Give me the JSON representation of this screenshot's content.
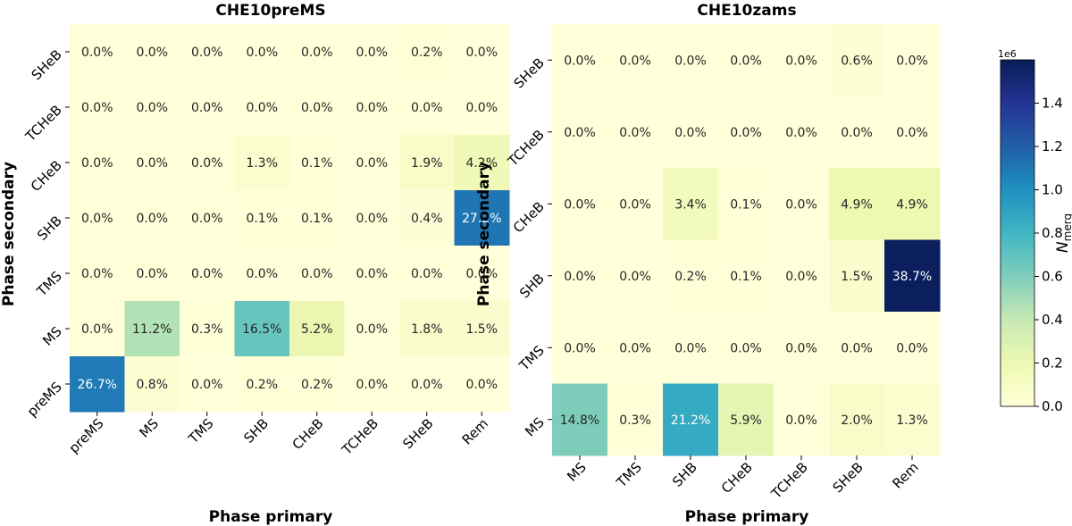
{
  "chart_data": [
    {
      "type": "heatmap",
      "title": "CHE10preMS",
      "xlabel": "Phase primary",
      "ylabel": "Phase secondary",
      "x_categories": [
        "preMS",
        "MS",
        "TMS",
        "SHB",
        "CHeB",
        "TCHeB",
        "SHeB",
        "Rem"
      ],
      "y_categories": [
        "SHeB",
        "TCHeB",
        "CHeB",
        "SHB",
        "TMS",
        "MS",
        "preMS"
      ],
      "values_percent": [
        [
          0.0,
          0.0,
          0.0,
          0.0,
          0.0,
          0.0,
          0.2,
          0.0
        ],
        [
          0.0,
          0.0,
          0.0,
          0.0,
          0.0,
          0.0,
          0.0,
          0.0
        ],
        [
          0.0,
          0.0,
          0.0,
          1.3,
          0.1,
          0.0,
          1.9,
          4.2
        ],
        [
          0.0,
          0.0,
          0.0,
          0.1,
          0.1,
          0.0,
          0.4,
          27.2
        ],
        [
          0.0,
          0.0,
          0.0,
          0.0,
          0.0,
          0.0,
          0.0,
          0.0
        ],
        [
          0.0,
          11.2,
          0.3,
          16.5,
          5.2,
          0.0,
          1.8,
          1.5
        ],
        [
          26.7,
          0.8,
          0.0,
          0.2,
          0.2,
          0.0,
          0.0,
          0.0
        ]
      ],
      "labels": [
        [
          "0.0%",
          "0.0%",
          "0.0%",
          "0.0%",
          "0.0%",
          "0.0%",
          "0.2%",
          "0.0%"
        ],
        [
          "0.0%",
          "0.0%",
          "0.0%",
          "0.0%",
          "0.0%",
          "0.0%",
          "0.0%",
          "0.0%"
        ],
        [
          "0.0%",
          "0.0%",
          "0.0%",
          "1.3%",
          "0.1%",
          "0.0%",
          "1.9%",
          "4.2%"
        ],
        [
          "0.0%",
          "0.0%",
          "0.0%",
          "0.1%",
          "0.1%",
          "0.0%",
          "0.4%",
          "27.2%"
        ],
        [
          "0.0%",
          "0.0%",
          "0.0%",
          "0.0%",
          "0.0%",
          "0.0%",
          "0.0%",
          "0.0%"
        ],
        [
          "0.0%",
          "11.2%",
          "0.3%",
          "16.5%",
          "5.2%",
          "0.0%",
          "1.8%",
          "1.5%"
        ],
        [
          "26.7%",
          "0.8%",
          "0.0%",
          "0.2%",
          "0.2%",
          "0.0%",
          "0.0%",
          "0.0%"
        ]
      ]
    },
    {
      "type": "heatmap",
      "title": "CHE10zams",
      "xlabel": "Phase primary",
      "ylabel": "Phase secondary",
      "x_categories": [
        "MS",
        "TMS",
        "SHB",
        "CHeB",
        "TCHeB",
        "SHeB",
        "Rem"
      ],
      "y_categories": [
        "SHeB",
        "TCHeB",
        "CHeB",
        "SHB",
        "TMS",
        "MS"
      ],
      "values_percent": [
        [
          0.0,
          0.0,
          0.0,
          0.0,
          0.0,
          0.6,
          0.0
        ],
        [
          0.0,
          0.0,
          0.0,
          0.0,
          0.0,
          0.0,
          0.0
        ],
        [
          0.0,
          0.0,
          3.4,
          0.1,
          0.0,
          4.9,
          4.9
        ],
        [
          0.0,
          0.0,
          0.2,
          0.1,
          0.0,
          1.5,
          38.7
        ],
        [
          0.0,
          0.0,
          0.0,
          0.0,
          0.0,
          0.0,
          0.0
        ],
        [
          14.8,
          0.3,
          21.2,
          5.9,
          0.0,
          2.0,
          1.3
        ]
      ],
      "labels": [
        [
          "0.0%",
          "0.0%",
          "0.0%",
          "0.0%",
          "0.0%",
          "0.6%",
          "0.0%"
        ],
        [
          "0.0%",
          "0.0%",
          "0.0%",
          "0.0%",
          "0.0%",
          "0.0%",
          "0.0%"
        ],
        [
          "0.0%",
          "0.0%",
          "3.4%",
          "0.1%",
          "0.0%",
          "4.9%",
          "4.9%"
        ],
        [
          "0.0%",
          "0.0%",
          "0.2%",
          "0.1%",
          "0.0%",
          "1.5%",
          "38.7%"
        ],
        [
          "0.0%",
          "0.0%",
          "0.0%",
          "0.0%",
          "0.0%",
          "0.0%",
          "0.0%"
        ],
        [
          "14.8%",
          "0.3%",
          "21.2%",
          "5.9%",
          "0.0%",
          "2.0%",
          "1.3%"
        ]
      ]
    }
  ],
  "colorbar": {
    "label_main": "N",
    "label_sub": "merg",
    "exponent_label": "1e6",
    "ticks": [
      "0.0",
      "0.2",
      "0.4",
      "0.6",
      "0.8",
      "1.0",
      "1.2",
      "1.4"
    ],
    "range": [
      0,
      1.6
    ],
    "colors": [
      "#ffffd9",
      "#edf8b1",
      "#c7e9b4",
      "#7fcdbb",
      "#41b6c4",
      "#1d91c0",
      "#225ea8",
      "#253494",
      "#081d58"
    ]
  }
}
